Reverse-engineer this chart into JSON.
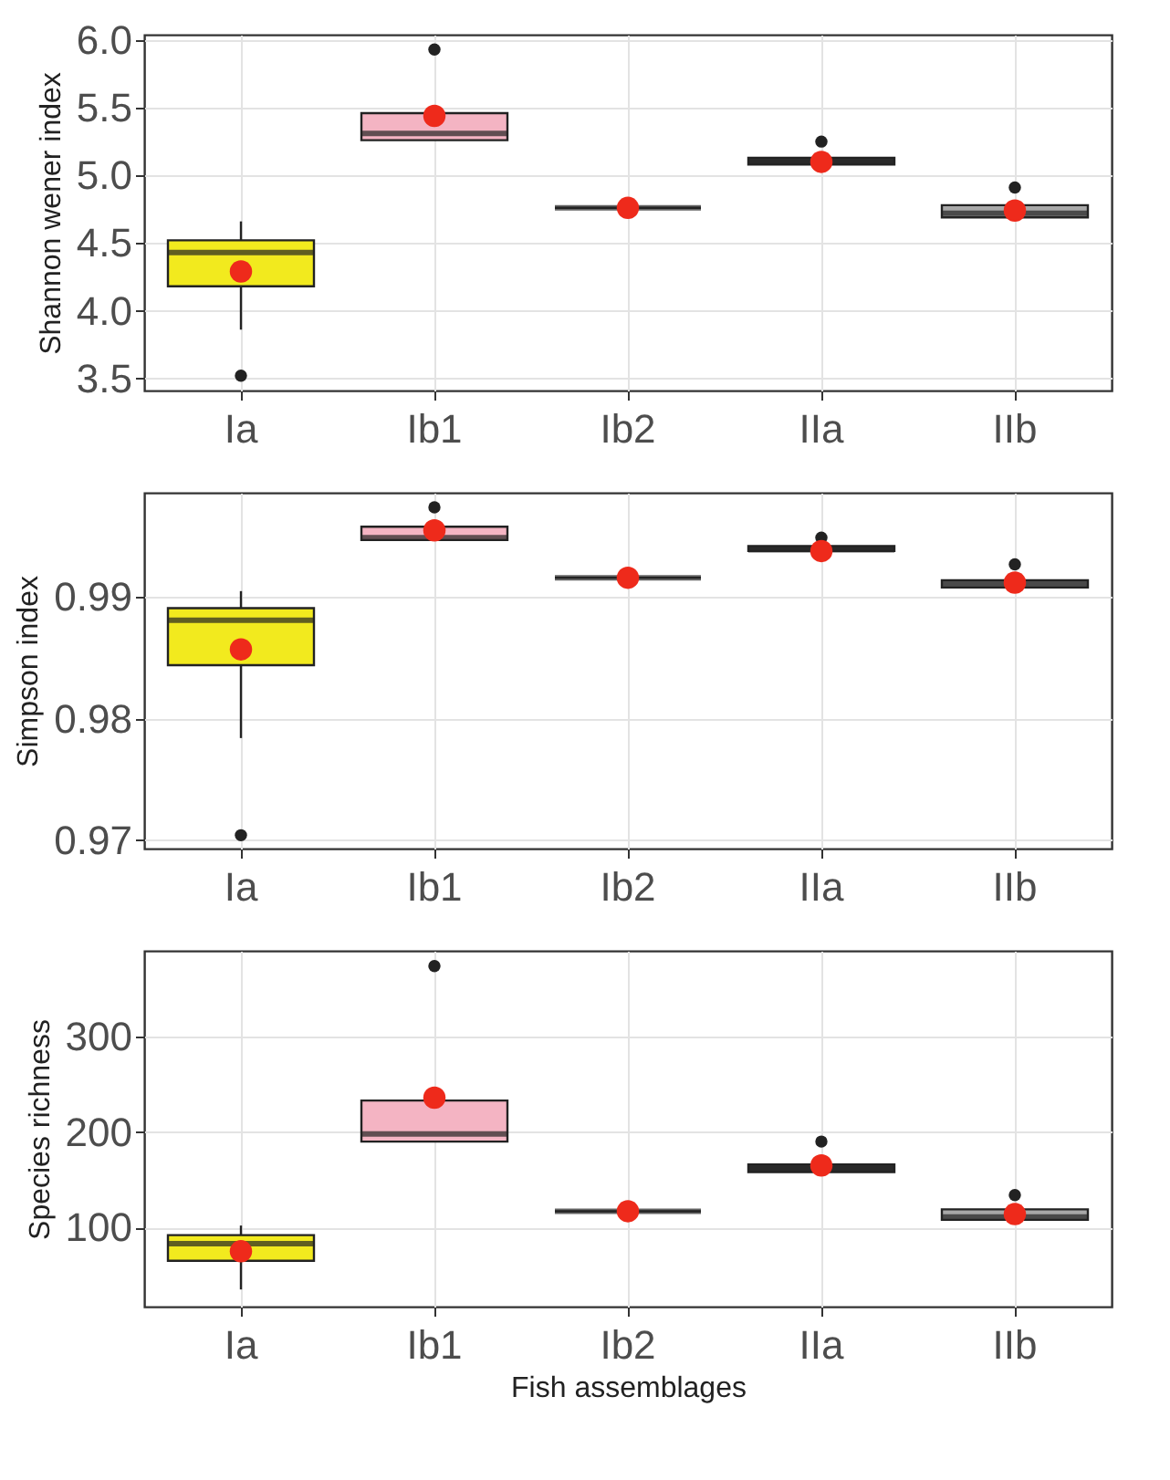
{
  "chart_data": [
    {
      "type": "box",
      "ylabel": "Shannon wener index",
      "categories": [
        "Ia",
        "Ib1",
        "Ib2",
        "IIa",
        "IIb"
      ],
      "colors": [
        "#f2ea1e",
        "#f4b4c3",
        "#222222",
        "#3a3a3a",
        "#a8a8a8"
      ],
      "ylim": [
        3.41,
        6.04
      ],
      "yticks": [
        3.5,
        {
          "value": 4,
          "label": "4.0"
        },
        4.5,
        {
          "value": 5,
          "label": "5.0"
        },
        5.5,
        {
          "value": 6,
          "label": "6.0"
        }
      ],
      "grid": true,
      "boxes": [
        {
          "low": 3.86,
          "q1": 4.18,
          "median": 4.43,
          "q3": 4.52,
          "high": 4.66,
          "mean": 4.29,
          "outliers": [
            3.52
          ]
        },
        {
          "low": 5.26,
          "q1": 5.26,
          "median": 5.31,
          "q3": 5.46,
          "high": 5.46,
          "mean": 5.44,
          "outliers": [
            5.93
          ]
        },
        {
          "low": 4.76,
          "q1": 4.76,
          "median": 4.76,
          "q3": 4.76,
          "high": 4.76,
          "mean": 4.76
        },
        {
          "low": 5.08,
          "q1": 5.08,
          "median": 5.1,
          "q3": 5.13,
          "high": 5.13,
          "mean": 5.1,
          "outliers": [
            5.25
          ]
        },
        {
          "low": 4.69,
          "q1": 4.69,
          "median": 4.72,
          "q3": 4.78,
          "high": 4.78,
          "mean": 4.74,
          "outliers": [
            4.91
          ]
        }
      ]
    },
    {
      "type": "box",
      "ylabel": "Simpson index",
      "categories": [
        "Ia",
        "Ib1",
        "Ib2",
        "IIa",
        "IIb"
      ],
      "colors": [
        "#f2ea1e",
        "#f4b4c3",
        "#222222",
        "#3a3a3a",
        "#a8a8a8"
      ],
      "ylim": [
        0.9693,
        0.9986
      ],
      "yticks": [
        {
          "value": 0.97,
          "label": "0.97"
        },
        {
          "value": 0.98,
          "label": "0.98"
        },
        {
          "value": 0.99,
          "label": "0.99"
        }
      ],
      "grid": true,
      "boxes": [
        {
          "low": 0.9784,
          "q1": 0.9844,
          "median": 0.9881,
          "q3": 0.9891,
          "high": 0.9905,
          "mean": 0.9857,
          "outliers": [
            0.9704
          ]
        },
        {
          "low": 0.9947,
          "q1": 0.9947,
          "median": 0.9949,
          "q3": 0.9958,
          "high": 0.9958,
          "mean": 0.9955,
          "outliers": [
            0.9974
          ]
        },
        {
          "low": 0.9916,
          "q1": 0.9916,
          "median": 0.9916,
          "q3": 0.9916,
          "high": 0.9916,
          "mean": 0.9916
        },
        {
          "low": 0.9938,
          "q1": 0.9938,
          "median": 0.9939,
          "q3": 0.9942,
          "high": 0.9942,
          "mean": 0.9938,
          "outliers": [
            0.9949
          ]
        },
        {
          "low": 0.9908,
          "q1": 0.9908,
          "median": 0.9911,
          "q3": 0.9914,
          "high": 0.9914,
          "mean": 0.9912,
          "outliers": [
            0.9927
          ]
        }
      ]
    },
    {
      "type": "box",
      "xlabel": "Fish assemblages",
      "ylabel": "Species  richness",
      "categories": [
        "Ia",
        "Ib1",
        "Ib2",
        "IIa",
        "IIb"
      ],
      "colors": [
        "#f2ea1e",
        "#f4b4c3",
        "#222222",
        "#3a3a3a",
        "#a8a8a8"
      ],
      "ylim": [
        17,
        390
      ],
      "yticks": [
        100,
        200,
        300
      ],
      "grid": true,
      "boxes": [
        {
          "low": 35,
          "q1": 65,
          "median": 83,
          "q3": 92,
          "high": 102,
          "mean": 75
        },
        {
          "low": 190,
          "q1": 190,
          "median": 198,
          "q3": 233,
          "high": 233,
          "mean": 236,
          "outliers": [
            374
          ]
        },
        {
          "low": 117,
          "q1": 117,
          "median": 117,
          "q3": 117,
          "high": 117,
          "mean": 117
        },
        {
          "low": 158,
          "q1": 158,
          "median": 162,
          "q3": 166,
          "high": 166,
          "mean": 165,
          "outliers": [
            190
          ]
        },
        {
          "low": 108,
          "q1": 108,
          "median": 111,
          "q3": 119,
          "high": 119,
          "mean": 114,
          "outliers": [
            134
          ]
        }
      ]
    }
  ]
}
